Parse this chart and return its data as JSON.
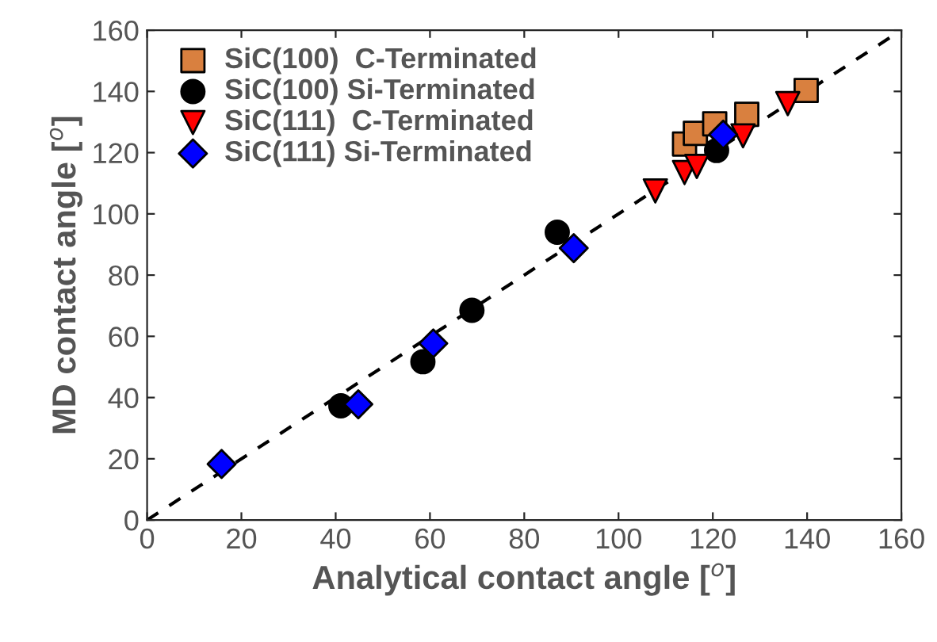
{
  "chart_data": {
    "type": "scatter",
    "xlabel": "Analytical contact angle [$^{o}$]",
    "ylabel": "MD contact angle [$^{o}$]",
    "xlim": [
      0,
      160
    ],
    "ylim": [
      0,
      160
    ],
    "xticks": [
      0,
      20,
      40,
      60,
      80,
      100,
      120,
      140,
      160
    ],
    "yticks": [
      0,
      20,
      40,
      60,
      80,
      100,
      120,
      140,
      160
    ],
    "grid": false,
    "legend": "top left",
    "series": [
      {
        "name": "SiC(100)  C-Terminated",
        "color": "#d9803f",
        "marker": "square",
        "x": [
          114,
          116.3,
          120.4,
          127.2,
          139.8
        ],
        "values": [
          122.8,
          126.3,
          129.4,
          132.5,
          140.3
        ]
      },
      {
        "name": "SiC(100) Si-Terminated",
        "color": "#000000",
        "marker": "circle",
        "x": [
          41.1,
          58.5,
          68.9,
          87,
          120.8
        ],
        "values": [
          37.3,
          51.7,
          68.5,
          94,
          120.7
        ]
      },
      {
        "name": "SiC(111)  C-Terminated",
        "color": "#ff0000",
        "marker": "triangle",
        "x": [
          107.8,
          114,
          116.6,
          126.4,
          135.9
        ],
        "values": [
          107.5,
          113.5,
          115.5,
          125.5,
          136
        ]
      },
      {
        "name": "SiC(111) Si-Terminated",
        "color": "#0000ff",
        "marker": "diamond",
        "x": [
          15.8,
          44.8,
          60.7,
          90.5,
          122.2
        ],
        "values": [
          18.3,
          37.8,
          57.7,
          88.8,
          125.9
        ]
      },
      {
        "type": "line",
        "color": "#000000",
        "line_style": "dashed",
        "marker": "none",
        "x": [
          0,
          160
        ],
        "values": [
          0,
          160
        ]
      }
    ]
  }
}
